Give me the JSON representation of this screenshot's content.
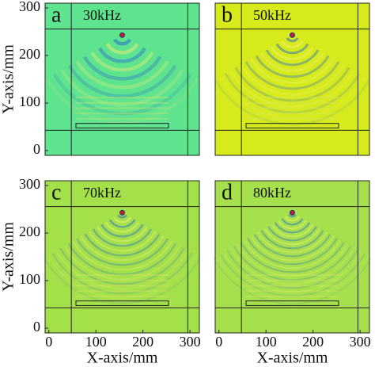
{
  "chart_data": [
    {
      "type": "field",
      "panel_label": "a",
      "title": "30kHz",
      "color": "#5ee38f",
      "ylabel": "Y-axis/mm",
      "xlim": [
        -8,
        320
      ],
      "ylim": [
        -10,
        310
      ],
      "yticks": [
        0,
        100,
        200,
        300
      ]
    },
    {
      "type": "field",
      "panel_label": "b",
      "title": "50kHz",
      "color": "#d6ea1c",
      "xlim": [
        -8,
        320
      ],
      "ylim": [
        -10,
        310
      ]
    },
    {
      "type": "field",
      "panel_label": "c",
      "title": "70kHz",
      "color": "#a4e04a",
      "ylabel": "Y-axis/mm",
      "xlabel": "X-axis/mm",
      "xlim": [
        -8,
        320
      ],
      "ylim": [
        -10,
        310
      ],
      "xticks": [
        0,
        100,
        200,
        300
      ],
      "yticks": [
        0,
        100,
        200,
        300
      ]
    },
    {
      "type": "field",
      "panel_label": "d",
      "title": "80kHz",
      "color": "#a6e04c",
      "xlabel": "X-axis/mm",
      "xlim": [
        -8,
        320
      ],
      "ylim": [
        -10,
        310
      ],
      "xticks": [
        0,
        100,
        200,
        300
      ]
    }
  ]
}
